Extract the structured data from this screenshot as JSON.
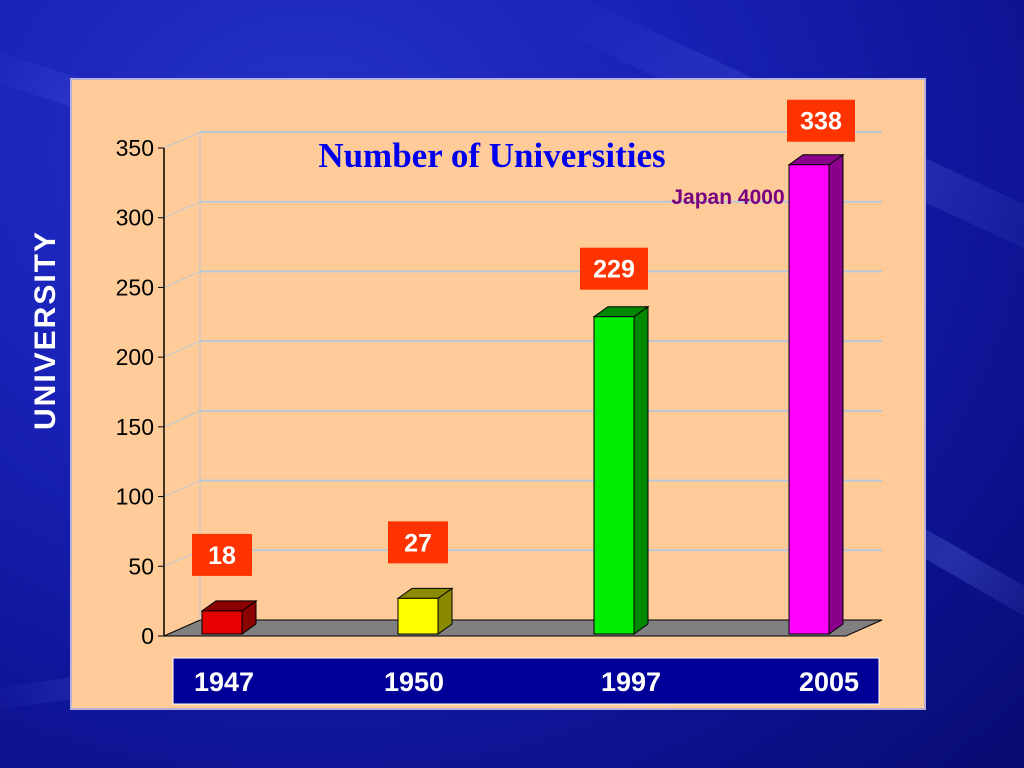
{
  "chart_data": {
    "type": "bar",
    "title": "Number of Universities",
    "annotation": "Japan 4000",
    "ylabel": "UNIVERSITY",
    "xlabel": "",
    "categories": [
      "1947",
      "1950",
      "1997",
      "2005"
    ],
    "values": [
      18,
      27,
      229,
      338
    ],
    "data_labels": [
      "18",
      "27",
      "229",
      "338"
    ],
    "colors": [
      "#e60000",
      "#ffff00",
      "#00ee00",
      "#ff00ff"
    ],
    "side_colors": [
      "#8b0000",
      "#8a8a00",
      "#008800",
      "#8b008b"
    ],
    "ylim": [
      0,
      350
    ],
    "yticks": [
      "0",
      "50",
      "100",
      "150",
      "200",
      "250",
      "300",
      "350"
    ],
    "grid": true,
    "legend": "none",
    "three_d": true
  },
  "colors": {
    "panel": "#ffcc99",
    "title": "#0000ee",
    "annotation": "#7a0080",
    "label_box": "#ff3300",
    "category_band": "#000099",
    "floor": "#808080"
  }
}
